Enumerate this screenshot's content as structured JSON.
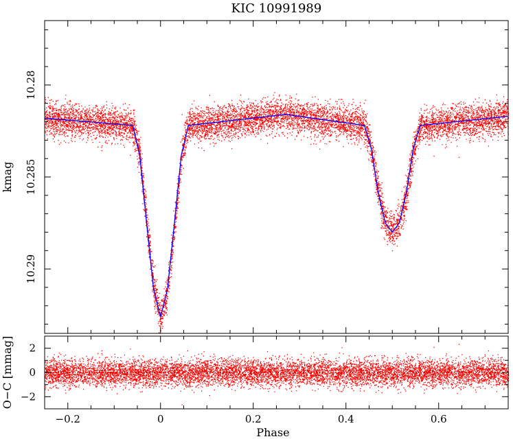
{
  "chart_data": [
    {
      "type": "scatter",
      "title": "KIC 10991989",
      "xlabel": "",
      "ylabel": "kmag",
      "xlim": [
        -0.25,
        0.75
      ],
      "ylim": [
        10.2935,
        10.2765
      ],
      "y_inverted": true,
      "x_ticks": [
        -0.2,
        0,
        0.2,
        0.4,
        0.6
      ],
      "y_ticks": [
        10.28,
        10.285,
        10.29
      ],
      "x_tick_labels": [
        "",
        "",
        "",
        "",
        ""
      ],
      "y_tick_labels": [
        "10.28",
        "10.285",
        "10.29"
      ],
      "series": [
        {
          "kind": "points",
          "color": "#ff0000",
          "scatter_sigma_mag": 0.00045,
          "description_of_trend": "follows the model curve"
        },
        {
          "kind": "line",
          "color": "#0000ff",
          "x": [
            -0.25,
            -0.06,
            -0.045,
            -0.03,
            -0.015,
            0.0,
            0.015,
            0.03,
            0.045,
            0.06,
            0.27,
            0.44,
            0.455,
            0.47,
            0.485,
            0.5,
            0.515,
            0.53,
            0.545,
            0.56,
            0.75
          ],
          "y": [
            10.2818,
            10.2822,
            10.2838,
            10.2875,
            10.2911,
            10.2926,
            10.2911,
            10.2875,
            10.2838,
            10.2822,
            10.2816,
            10.2822,
            10.2835,
            10.2859,
            10.2875,
            10.288,
            10.2875,
            10.2859,
            10.2835,
            10.2822,
            10.2817
          ]
        }
      ]
    },
    {
      "type": "scatter",
      "title": "",
      "xlabel": "Phase",
      "ylabel": "O-C [mmag]",
      "xlim": [
        -0.25,
        0.75
      ],
      "ylim": [
        -3,
        3
      ],
      "x_ticks": [
        -0.2,
        0,
        0.2,
        0.4,
        0.6
      ],
      "y_ticks": [
        -2,
        0,
        2
      ],
      "x_tick_labels": [
        "-0.2",
        "0",
        "0.2",
        "0.4",
        "0.6"
      ],
      "y_tick_labels": [
        "-2",
        "0",
        "2"
      ],
      "series": [
        {
          "kind": "points",
          "color": "#ff0000",
          "scatter_sigma_mmag": 0.55,
          "mean": 0
        },
        {
          "kind": "reference-line",
          "color": "#000000",
          "style": "dotted",
          "y": 0
        }
      ]
    }
  ]
}
